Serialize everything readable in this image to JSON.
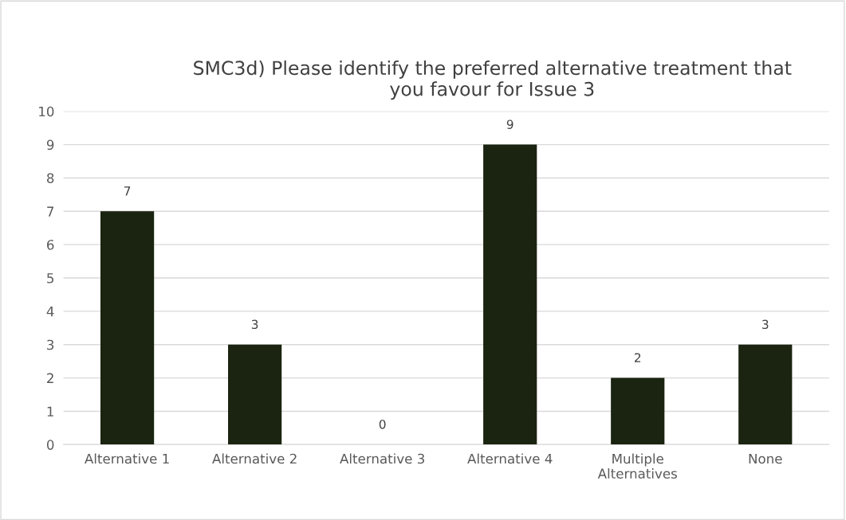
{
  "chart_data": {
    "type": "bar",
    "title": "SMC3d) Please identify the preferred alternative treatment that\nyou favour for Issue 3",
    "categories": [
      "Alternative 1",
      "Alternative 2",
      "Alternative 3",
      "Alternative 4",
      "Multiple\nAlternatives",
      "None"
    ],
    "values": [
      7,
      3,
      0,
      9,
      2,
      3
    ],
    "color": "#1a2410",
    "ylim": [
      0,
      10
    ],
    "yticks": [
      0,
      1,
      2,
      3,
      4,
      5,
      6,
      7,
      8,
      9,
      10
    ],
    "grid": "y",
    "data_labels": true,
    "legend": false
  }
}
